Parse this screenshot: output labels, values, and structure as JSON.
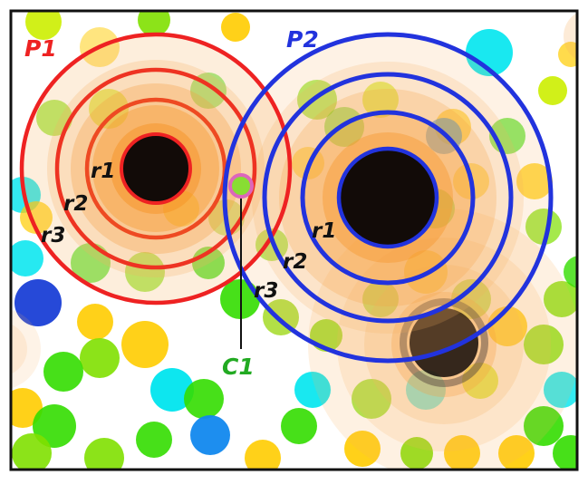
{
  "diagram": {
    "point_labels": {
      "p1": "P1",
      "p2": "P2",
      "c1": "C1"
    },
    "ring_labels": {
      "r1": "r1",
      "r2": "r2",
      "r3": "r3"
    },
    "colors": {
      "p1": "#ee2222",
      "p2": "#2233dd",
      "c1": "#22aa22",
      "c1_ring": "#dd66bb",
      "core": "#120b08",
      "halo": "#f7b060",
      "frame": "#111111"
    },
    "background_particle_colors": [
      "#7fe000",
      "#33dd00",
      "#ffcc00",
      "#ff9900",
      "#00e5ee",
      "#1188ee",
      "#1a3fd6",
      "#ccee00",
      "#aadd33"
    ]
  }
}
